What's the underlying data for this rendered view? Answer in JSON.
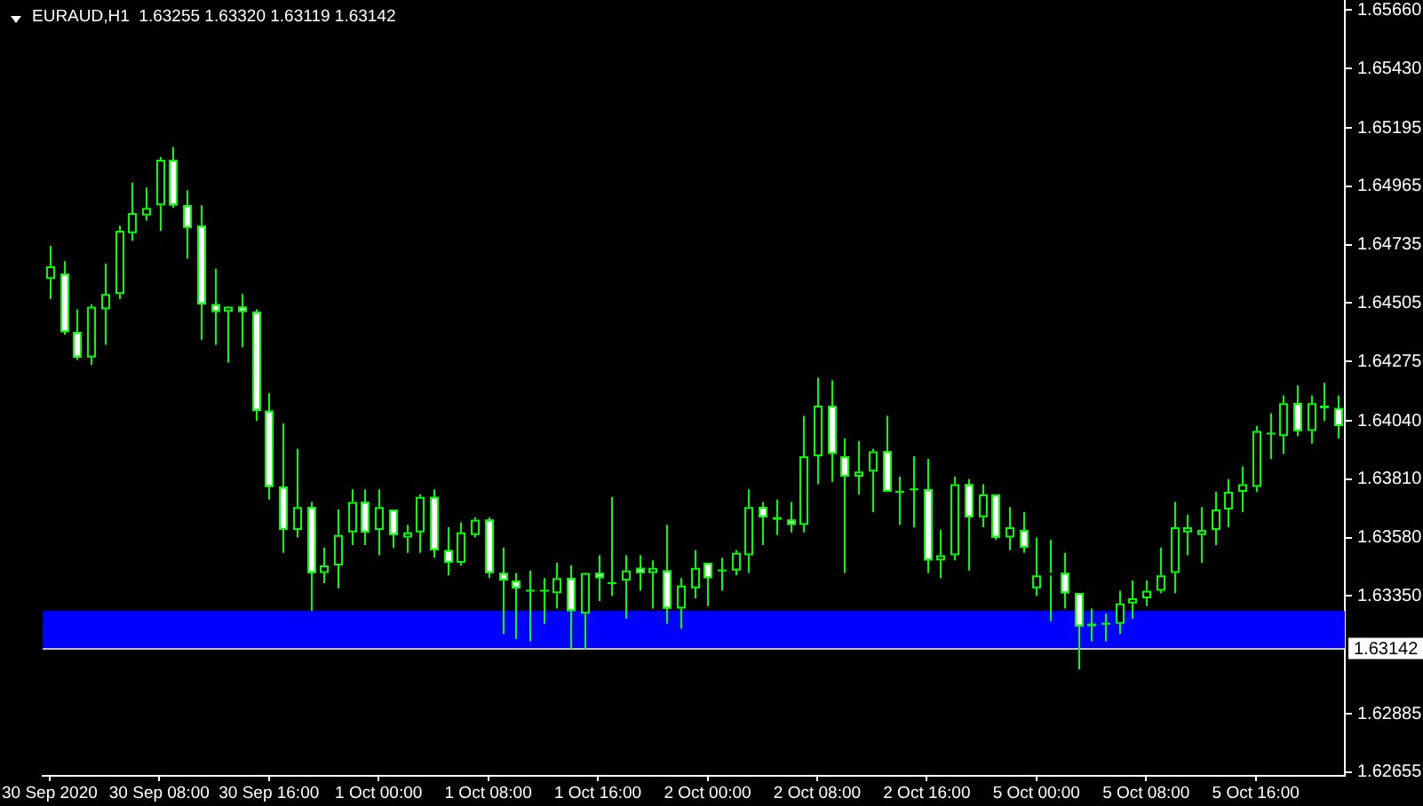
{
  "chart_data": {
    "type": "candlestick",
    "title": "EURAUD,H1  1.63255 1.63320 1.63119 1.63142",
    "categories": [
      "30 Sep 2020",
      null,
      null,
      null,
      null,
      null,
      null,
      null,
      "30 Sep 08:00",
      null,
      null,
      null,
      null,
      null,
      null,
      null,
      "30 Sep 16:00",
      null,
      null,
      null,
      null,
      null,
      null,
      null,
      "1 Oct 00:00",
      null,
      null,
      null,
      null,
      null,
      null,
      null,
      "1 Oct 08:00",
      null,
      null,
      null,
      null,
      null,
      null,
      null,
      "1 Oct 16:00",
      null,
      null,
      null,
      null,
      null,
      null,
      null,
      "2 Oct 00:00",
      null,
      null,
      null,
      null,
      null,
      null,
      null,
      "2 Oct 08:00",
      null,
      null,
      null,
      null,
      null,
      null,
      null,
      "2 Oct 16:00",
      null,
      null,
      null,
      null,
      null,
      null,
      null,
      "5 Oct 00:00",
      null,
      null,
      null,
      null,
      null,
      null,
      null,
      "5 Oct 08:00",
      null,
      null,
      null,
      null,
      null,
      null,
      null,
      "5 Oct 16:00",
      null,
      null,
      null,
      null,
      null,
      null
    ],
    "ohlc": [
      [
        1.646,
        1.6473,
        1.6452,
        1.6465
      ],
      [
        1.6462,
        1.6467,
        1.6438,
        1.6439
      ],
      [
        1.6439,
        1.6448,
        1.6428,
        1.6429
      ],
      [
        1.6429,
        1.645,
        1.6426,
        1.6449
      ],
      [
        1.6448,
        1.6466,
        1.6434,
        1.6454
      ],
      [
        1.6454,
        1.6481,
        1.6452,
        1.6479
      ],
      [
        1.6478,
        1.6498,
        1.6475,
        1.6486
      ],
      [
        1.6485,
        1.6496,
        1.6483,
        1.6488
      ],
      [
        1.6489,
        1.6508,
        1.6479,
        1.6507
      ],
      [
        1.6507,
        1.6512,
        1.6488,
        1.6489
      ],
      [
        1.6489,
        1.6495,
        1.6468,
        1.648
      ],
      [
        1.6481,
        1.6489,
        1.6436,
        1.645
      ],
      [
        1.645,
        1.6464,
        1.6434,
        1.6447
      ],
      [
        1.6447,
        1.6449,
        1.6427,
        1.6449
      ],
      [
        1.6449,
        1.6454,
        1.6433,
        1.6447
      ],
      [
        1.6447,
        1.6448,
        1.6404,
        1.6408
      ],
      [
        1.6408,
        1.6415,
        1.6373,
        1.6378
      ],
      [
        1.6378,
        1.6403,
        1.6352,
        1.6361
      ],
      [
        1.6361,
        1.6393,
        1.6358,
        1.637
      ],
      [
        1.637,
        1.6372,
        1.6329,
        1.6344
      ],
      [
        1.6344,
        1.6354,
        1.634,
        1.6347
      ],
      [
        1.6347,
        1.6369,
        1.6338,
        1.6359
      ],
      [
        1.636,
        1.6377,
        1.6355,
        1.6372
      ],
      [
        1.6372,
        1.6377,
        1.6355,
        1.636
      ],
      [
        1.6361,
        1.6377,
        1.6351,
        1.637
      ],
      [
        1.6369,
        1.6369,
        1.6354,
        1.6359
      ],
      [
        1.6358,
        1.6363,
        1.6352,
        1.636
      ],
      [
        1.636,
        1.6375,
        1.6352,
        1.6374
      ],
      [
        1.6374,
        1.6377,
        1.635,
        1.6353
      ],
      [
        1.6353,
        1.6362,
        1.6343,
        1.6348
      ],
      [
        1.6348,
        1.6364,
        1.6347,
        1.636
      ],
      [
        1.6359,
        1.6366,
        1.6358,
        1.6365
      ],
      [
        1.6365,
        1.6366,
        1.6342,
        1.6344
      ],
      [
        1.6344,
        1.6354,
        1.632,
        1.6341
      ],
      [
        1.6341,
        1.6344,
        1.6318,
        1.6338
      ],
      [
        1.6337,
        1.6345,
        1.6317,
        1.6337
      ],
      [
        1.6337,
        1.6342,
        1.6324,
        1.6337
      ],
      [
        1.6336,
        1.6348,
        1.633,
        1.6342
      ],
      [
        1.6342,
        1.6347,
        1.6314,
        1.6329
      ],
      [
        1.6328,
        1.6344,
        1.6314,
        1.6344
      ],
      [
        1.6344,
        1.6351,
        1.6333,
        1.6342
      ],
      [
        1.634,
        1.6374,
        1.6335,
        1.634
      ],
      [
        1.6341,
        1.6351,
        1.6326,
        1.6345
      ],
      [
        1.6346,
        1.6351,
        1.6337,
        1.6344
      ],
      [
        1.6344,
        1.6349,
        1.633,
        1.6346
      ],
      [
        1.6345,
        1.6363,
        1.6324,
        1.633
      ],
      [
        1.633,
        1.6342,
        1.6322,
        1.6339
      ],
      [
        1.6338,
        1.6353,
        1.6334,
        1.6346
      ],
      [
        1.6348,
        1.6348,
        1.6331,
        1.6342
      ],
      [
        1.6345,
        1.635,
        1.6337,
        1.6345
      ],
      [
        1.6345,
        1.6353,
        1.6343,
        1.6352
      ],
      [
        1.6351,
        1.6377,
        1.6344,
        1.637
      ],
      [
        1.637,
        1.6372,
        1.6355,
        1.6366
      ],
      [
        1.6366,
        1.6373,
        1.6359,
        1.6365
      ],
      [
        1.6365,
        1.6372,
        1.636,
        1.6363
      ],
      [
        1.6363,
        1.6406,
        1.636,
        1.639
      ],
      [
        1.639,
        1.6421,
        1.6379,
        1.641
      ],
      [
        1.641,
        1.642,
        1.638,
        1.6391
      ],
      [
        1.639,
        1.6397,
        1.6344,
        1.6382
      ],
      [
        1.6382,
        1.6396,
        1.6375,
        1.6384
      ],
      [
        1.6384,
        1.6393,
        1.6368,
        1.6392
      ],
      [
        1.6392,
        1.6406,
        1.6376,
        1.6376
      ],
      [
        1.6376,
        1.6382,
        1.6363,
        1.6376
      ],
      [
        1.6377,
        1.639,
        1.6362,
        1.6377
      ],
      [
        1.6377,
        1.6389,
        1.6344,
        1.6349
      ],
      [
        1.6349,
        1.6361,
        1.6342,
        1.6351
      ],
      [
        1.6351,
        1.6382,
        1.6349,
        1.6379
      ],
      [
        1.6379,
        1.6381,
        1.6345,
        1.6366
      ],
      [
        1.6366,
        1.6379,
        1.6362,
        1.6375
      ],
      [
        1.6375,
        1.6375,
        1.6357,
        1.6358
      ],
      [
        1.6358,
        1.637,
        1.6353,
        1.6362
      ],
      [
        1.6361,
        1.6368,
        1.6352,
        1.6354
      ],
      [
        1.6338,
        1.6358,
        1.6335,
        1.6343
      ],
      [
        1.6343,
        1.6357,
        1.6325,
        1.6344
      ],
      [
        1.6344,
        1.6352,
        1.633,
        1.6336
      ],
      [
        1.6336,
        1.6336,
        1.6306,
        1.6323
      ],
      [
        1.6323,
        1.633,
        1.6317,
        1.6324
      ],
      [
        1.6324,
        1.6328,
        1.6317,
        1.6324
      ],
      [
        1.6324,
        1.6337,
        1.632,
        1.6332
      ],
      [
        1.6332,
        1.6341,
        1.6326,
        1.6334
      ],
      [
        1.6334,
        1.6341,
        1.6331,
        1.6337
      ],
      [
        1.6337,
        1.6354,
        1.6336,
        1.6343
      ],
      [
        1.6344,
        1.6372,
        1.6336,
        1.6362
      ],
      [
        1.636,
        1.6367,
        1.6351,
        1.6362
      ],
      [
        1.6359,
        1.637,
        1.6348,
        1.6361
      ],
      [
        1.6361,
        1.6376,
        1.6355,
        1.6369
      ],
      [
        1.6369,
        1.6381,
        1.6362,
        1.6376
      ],
      [
        1.6376,
        1.6386,
        1.6368,
        1.6379
      ],
      [
        1.6378,
        1.6402,
        1.6376,
        1.64
      ],
      [
        1.6399,
        1.6407,
        1.6389,
        1.6399
      ],
      [
        1.6398,
        1.6414,
        1.6391,
        1.6411
      ],
      [
        1.6411,
        1.6418,
        1.6398,
        1.64
      ],
      [
        1.64,
        1.6414,
        1.6395,
        1.6411
      ],
      [
        1.641,
        1.6419,
        1.6404,
        1.6409
      ],
      [
        1.6409,
        1.6414,
        1.6397,
        1.6402
      ]
    ],
    "color": "#00ff00",
    "colors": [
      "#000000",
      "#ffffff",
      "#ffffff",
      "#000000",
      "#000000",
      "#000000",
      "#000000",
      "#000000",
      "#000000",
      "#ffffff",
      "#ffffff",
      "#ffffff",
      "#ffffff",
      "#000000",
      "#ffffff",
      "#ffffff",
      "#ffffff",
      "#ffffff",
      "#000000",
      "#ffffff",
      "#000000",
      "#000000",
      "#000000",
      "#ffffff",
      "#000000",
      "#ffffff",
      "#000000",
      "#000000",
      "#ffffff",
      "#ffffff",
      "#000000",
      "#000000",
      "#ffffff",
      "#ffffff",
      "#ffffff",
      "#00ff00",
      "#00ff00",
      "#000000",
      "#ffffff",
      "#000000",
      "#ffffff",
      "#00ff00",
      "#000000",
      "#ffffff",
      "#000000",
      "#ffffff",
      "#000000",
      "#000000",
      "#ffffff",
      "#00ff00",
      "#000000",
      "#000000",
      "#ffffff",
      "#00ff00",
      "#ffffff",
      "#000000",
      "#000000",
      "#ffffff",
      "#ffffff",
      "#000000",
      "#000000",
      "#ffffff",
      "#00ff00",
      "#00ff00",
      "#ffffff",
      "#000000",
      "#000000",
      "#ffffff",
      "#000000",
      "#ffffff",
      "#000000",
      "#ffffff",
      "#000000",
      "#000000",
      "#ffffff",
      "#ffffff",
      "#00ff00",
      "#00ff00",
      "#000000",
      "#000000",
      "#000000",
      "#000000",
      "#000000",
      "#000000",
      "#000000",
      "#000000",
      "#000000",
      "#000000",
      "#000000",
      "#00ff00",
      "#000000",
      "#ffffff",
      "#000000",
      "#00ff00",
      "#ffffff"
    ],
    "ylim": [
      1.6264,
      1.657
    ],
    "yticks": [
      {
        "value": 1.6566,
        "label": "1.65660"
      },
      {
        "value": 1.6543,
        "label": "1.65430"
      },
      1.65195,
      1.64965,
      1.64735,
      1.64505,
      1.64275,
      {
        "value": 1.6404,
        "label": "1.64040"
      },
      {
        "value": 1.6381,
        "label": "1.63810"
      },
      {
        "value": 1.6358,
        "label": "1.63580"
      },
      {
        "value": 1.6335,
        "label": "1.63350"
      },
      1.62885,
      1.62655
    ],
    "ref_lines": [
      {
        "axis": "y",
        "value": 1.63142,
        "label": "1.63142",
        "color": "#c0c0c0"
      }
    ],
    "bands": [
      {
        "axis": "y",
        "from": 1.6314,
        "to": 1.6329,
        "color": "#0000ff"
      }
    ]
  }
}
